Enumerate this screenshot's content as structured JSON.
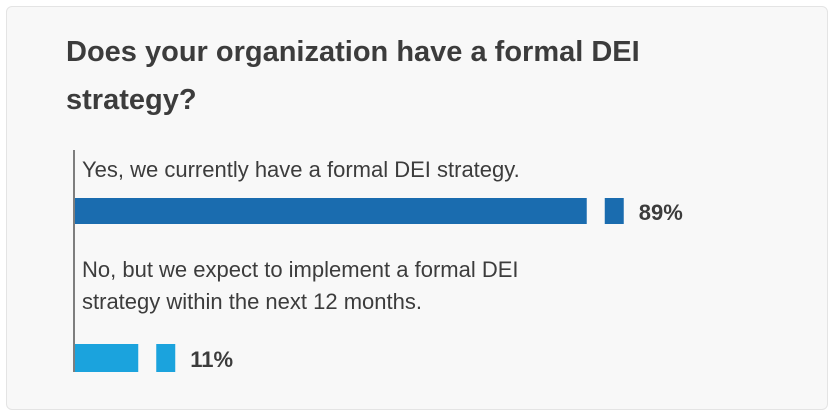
{
  "chart_data": {
    "type": "bar",
    "orientation": "horizontal",
    "title": "Does your organization have a formal DEI strategy?",
    "categories": [
      "Yes, we currently have a formal DEI strategy.",
      "No, but we expect to implement a formal DEI strategy within the next 12 months."
    ],
    "values": [
      89,
      11
    ],
    "value_labels": [
      "89%",
      "11%"
    ],
    "colors": [
      "#1a6caf",
      "#1ba3dd"
    ],
    "xlim": [
      0,
      100
    ]
  }
}
